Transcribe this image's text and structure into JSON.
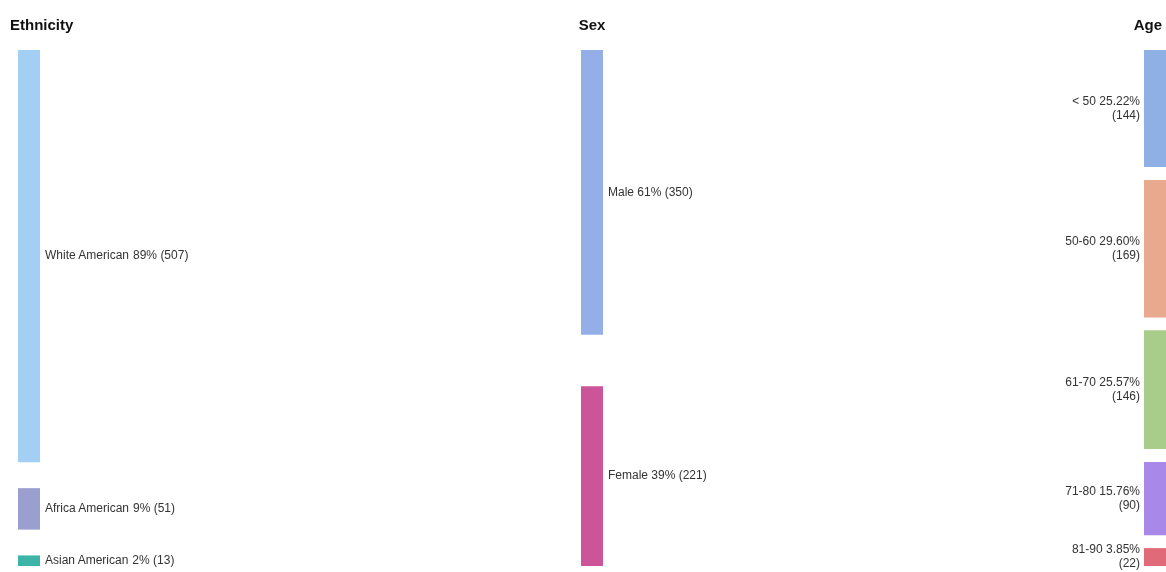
{
  "chart_data": {
    "type": "other",
    "categories": [
      "White American",
      "Africa American",
      "Asian American",
      "Male",
      "Female",
      "< 50",
      "50-60",
      "61-70",
      "71-80",
      "81-90"
    ],
    "series": [
      {
        "name": "Ethnicity",
        "values": [
          507,
          51,
          13,
          null,
          null,
          null,
          null,
          null,
          null,
          null
        ],
        "value_labels": [
          "89% (507)",
          "9% (51)",
          "2% (13)",
          null,
          null,
          null,
          null,
          null,
          null,
          null
        ],
        "colors": [
          "#a3cff5",
          "#9a9fd0",
          "#3cb4a8",
          null,
          null,
          null,
          null,
          null,
          null,
          null
        ]
      },
      {
        "name": "Sex",
        "values": [
          null,
          null,
          null,
          350,
          221,
          null,
          null,
          null,
          null,
          null
        ],
        "value_labels": [
          null,
          null,
          null,
          "61% (350)",
          "39% (221)",
          null,
          null,
          null,
          null,
          null
        ],
        "colors": [
          null,
          null,
          null,
          "#94aee8",
          "#cc5599",
          null,
          null,
          null,
          null,
          null
        ]
      },
      {
        "name": "Age",
        "values": [
          null,
          null,
          null,
          null,
          null,
          144,
          169,
          146,
          90,
          22
        ],
        "value_labels": [
          null,
          null,
          null,
          null,
          null,
          "25.22% (144)",
          "29.60% (169)",
          "25.57% (146)",
          "15.76% (90)",
          "3.85% (22)"
        ],
        "colors": [
          null,
          null,
          null,
          null,
          null,
          "#8fb0e4",
          "#e8a98e",
          "#a8cc8a",
          "#a888e8",
          "#e06a78"
        ]
      }
    ]
  }
}
